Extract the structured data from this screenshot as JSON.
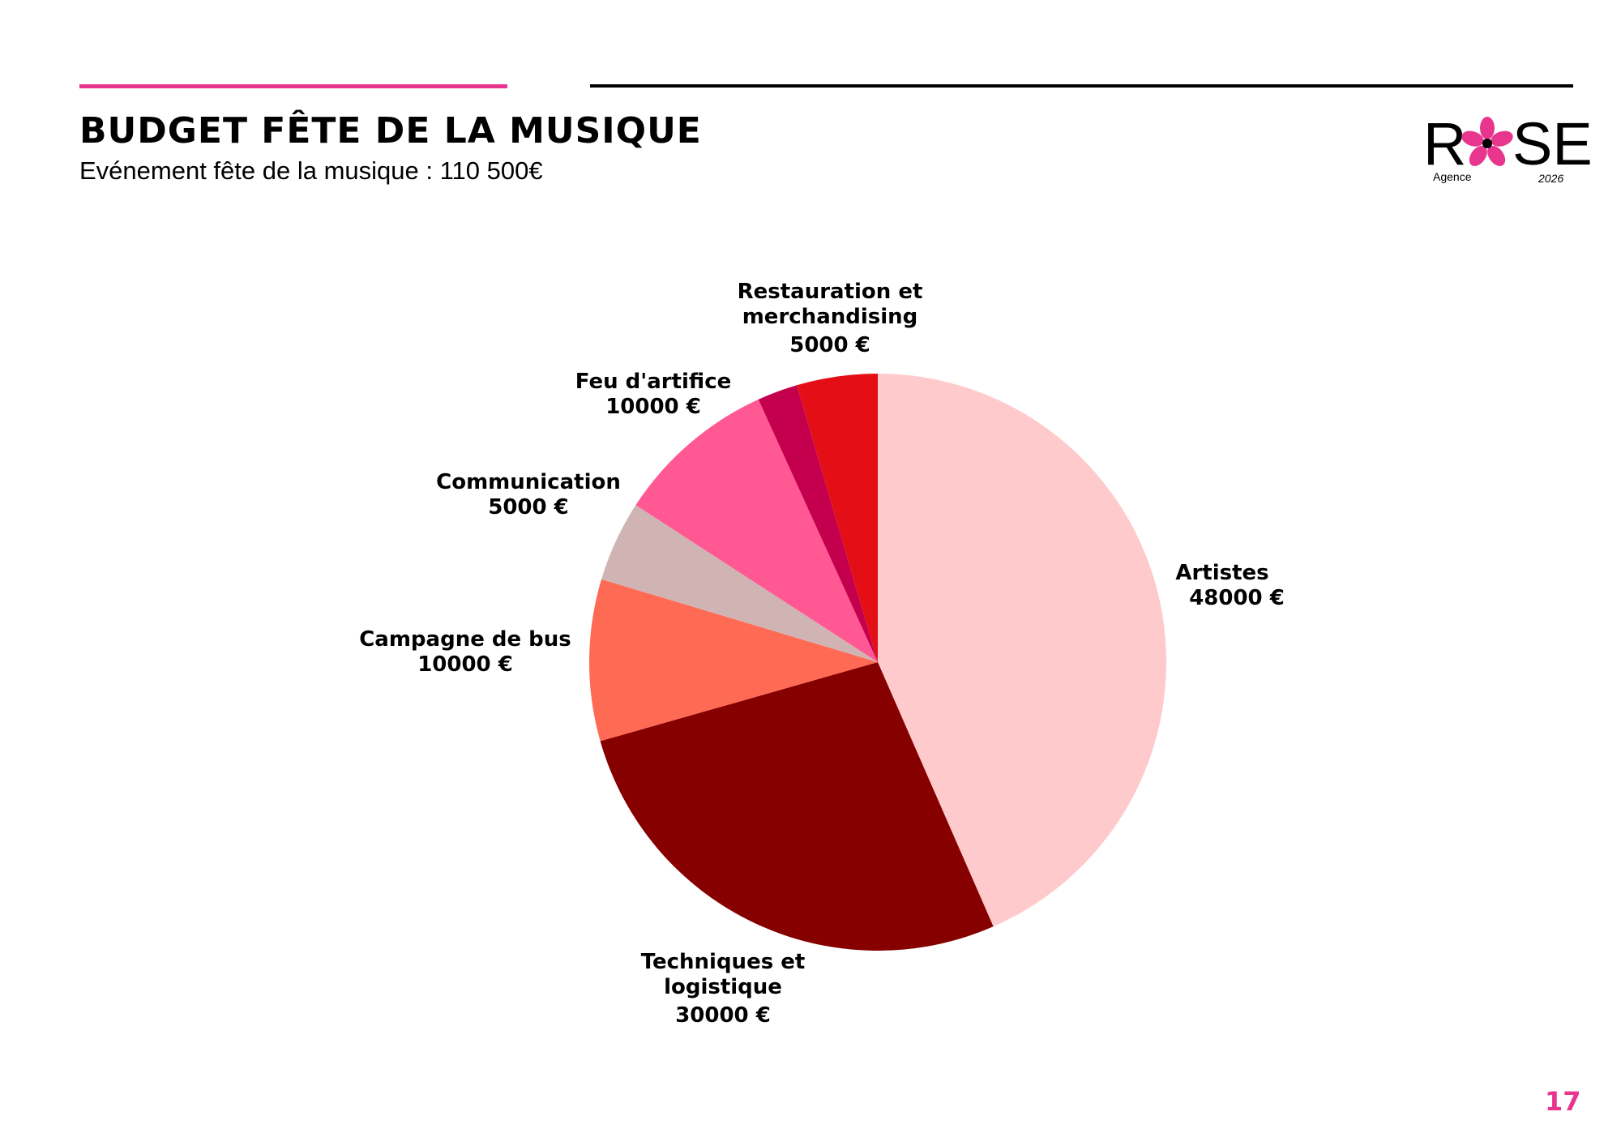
{
  "page": {
    "title": "BUDGET FÊTE DE LA MUSIQUE",
    "subtitle": "Evénement fête de la musique : 110 500€",
    "page_number": "17",
    "accent_color": "#e8368f"
  },
  "logo": {
    "word_left": "R",
    "word_right": "SE",
    "agency": "Agence",
    "year": "2026",
    "flower_color": "#e8368f"
  },
  "chart_data": {
    "type": "pie",
    "currency": "€",
    "start_angle_deg": 0,
    "direction": "clockwise",
    "slices": [
      {
        "label": "Artistes",
        "value": 48000,
        "value_text": "48000  €",
        "color": "#fecacc"
      },
      {
        "label": "Techniques et logistique",
        "value": 30000,
        "value_text": "30000 €",
        "color": "#870000"
      },
      {
        "label": "Campagne de bus",
        "value": 10000,
        "value_text": "10000 €",
        "color": "#ff6a55"
      },
      {
        "label": "Communication",
        "value": 5000,
        "value_text": "5000 €",
        "color": "#d0b4b4"
      },
      {
        "label": "Feu d'artifice",
        "value": 10000,
        "value_text": "10000 €",
        "color": "#ff5893"
      },
      {
        "label": "",
        "value": 2500,
        "value_text": "",
        "color": "#c4004e"
      },
      {
        "label": "Restauration et merchandising",
        "value": 5000,
        "value_text": "5000 €",
        "color": "#e40f16"
      }
    ]
  }
}
